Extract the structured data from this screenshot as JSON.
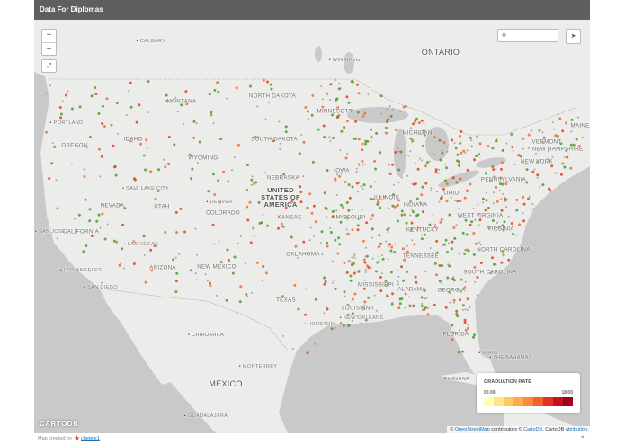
{
  "header": {
    "title": "Data For Diplomas"
  },
  "controls": {
    "zoom_in": "+",
    "zoom_out": "−"
  },
  "map": {
    "logo": "CARTODB",
    "places": [
      "CALGARY",
      "WINNIPEG",
      "ONTARIO",
      "MONTANA",
      "NORTH DAKOTA",
      "MINNESOTA",
      "OREGON",
      "IDAHO",
      "SOUTH DAKOTA",
      "WYOMING",
      "NEBRASKA",
      "UNITED STATES OF AMERICA",
      "IOWA",
      "MICHIGAN",
      "NEVADA",
      "UTAH",
      "COLORADO",
      "KANSAS",
      "MISSOURI",
      "ILLINOIS",
      "INDIANA",
      "OHIO",
      "PENNSYLVANIA",
      "NEW YORK",
      "VERMONT",
      "NEW HAMPSHIRE",
      "MAINE",
      "CALIFORNIA",
      "ARIZONA",
      "NEW MEXICO",
      "OKLAHOMA",
      "TEXAS",
      "KENTUCKY",
      "WEST VIRGINIA",
      "VIRGINIA",
      "TENNESSEE",
      "NORTH CAROLINA",
      "SOUTH CAROLINA",
      "MISSISSIPPI",
      "ALABAMA",
      "GEORGIA",
      "LOUISIANA",
      "FLORIDA",
      "MEXICO",
      "THE BAHAMAS",
      "PORTLAND",
      "SALT LAKE CITY",
      "DENVER",
      "SAN JOSE",
      "LAS VEGAS",
      "LOS ANGELES",
      "SAN DIEGO",
      "CHIHUAHUA",
      "MONTERREY",
      "HOUSTON",
      "NEW ORLEANS",
      "MIAMI",
      "HAVANA",
      "GUADALAJARA"
    ]
  },
  "legend": {
    "title": "GRADUATION RATE",
    "min_label": "00.00",
    "max_label": "18.00",
    "colors": [
      "#ffffb2",
      "#fee38b",
      "#fec965",
      "#fdab4b",
      "#fc8a3e",
      "#f4602f",
      "#e33223",
      "#c4111f",
      "#a3001f"
    ]
  },
  "attribution": {
    "osm_prefix": "©",
    "osm": "OpenStreetMap",
    "osm_suffix": "contributors ©",
    "cartodb": "CartoDB",
    "cartodb_suffix": ", CartoDB",
    "link": "attribution"
  },
  "footer": {
    "text": "Map created by",
    "author": "chetele1"
  }
}
